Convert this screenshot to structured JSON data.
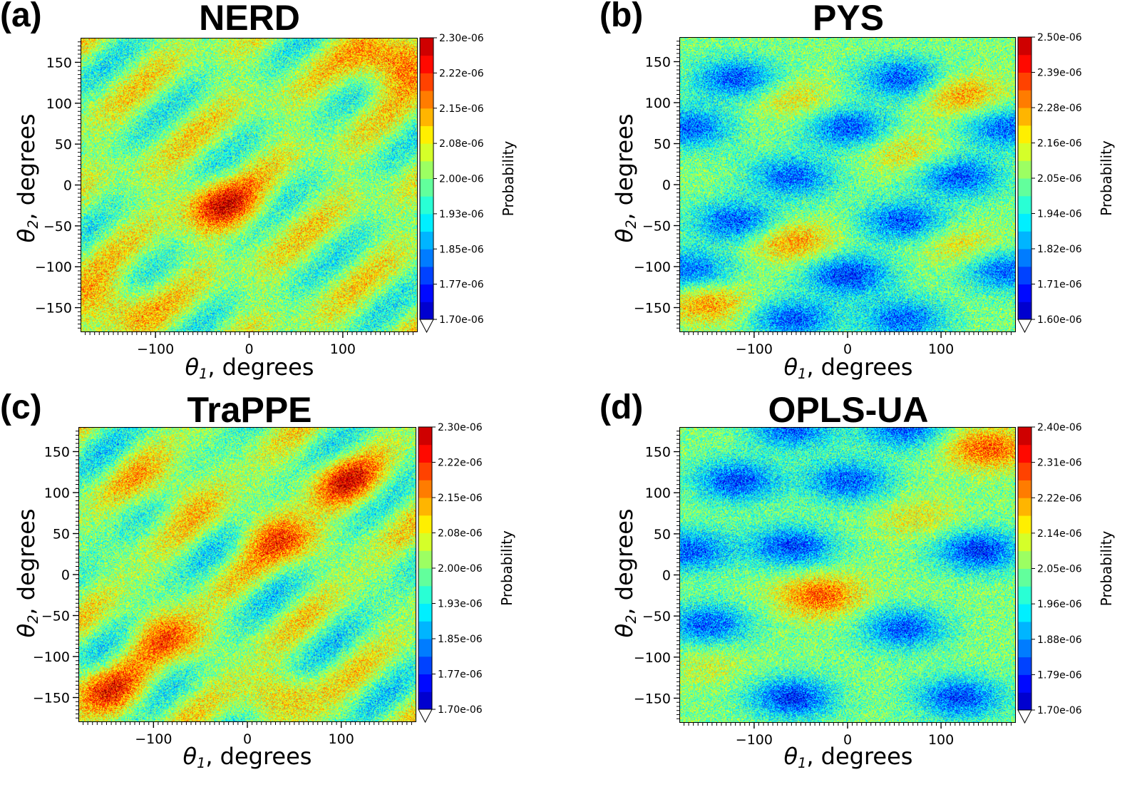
{
  "chart_data": [
    {
      "type": "heatmap",
      "panel_label": "(a)",
      "title": "NERD",
      "xlabel_symbol": "θ",
      "xlabel_sub": "1",
      "xlabel_text": ", degrees",
      "ylabel_symbol": "θ",
      "ylabel_sub": "2",
      "ylabel_text": ", degrees",
      "xlim": [
        -180,
        180
      ],
      "ylim": [
        -180,
        180
      ],
      "xticks": [
        -100,
        0,
        100
      ],
      "yticks": [
        150,
        100,
        50,
        0,
        -50,
        -100,
        -150
      ],
      "colorbar_label": "Probability",
      "colorbar_ticks": [
        "2.30e-06",
        "2.22e-06",
        "2.15e-06",
        "2.08e-06",
        "2.00e-06",
        "1.93e-06",
        "1.85e-06",
        "1.77e-06",
        "1.70e-06"
      ],
      "colorbar_range": [
        1.7e-06,
        2.3e-06
      ],
      "pattern": "diagonal",
      "hotspots": [
        {
          "x": -30,
          "y": -25,
          "v": 2.22e-06
        },
        {
          "x": 155,
          "y": 150,
          "v": 2.22e-06
        },
        {
          "x": -150,
          "y": -145,
          "v": 2.15e-06
        }
      ]
    },
    {
      "type": "heatmap",
      "panel_label": "(b)",
      "title": "PYS",
      "xlabel_symbol": "θ",
      "xlabel_sub": "1",
      "xlabel_text": ", degrees",
      "ylabel_symbol": "θ",
      "ylabel_sub": "2",
      "ylabel_text": ", degrees",
      "xlim": [
        -180,
        180
      ],
      "ylim": [
        -180,
        180
      ],
      "xticks": [
        -100,
        0,
        100
      ],
      "yticks": [
        150,
        100,
        50,
        0,
        -50,
        -100,
        -150
      ],
      "colorbar_label": "Probability",
      "colorbar_ticks": [
        "2.50e-06",
        "2.39e-06",
        "2.28e-06",
        "2.16e-06",
        "2.05e-06",
        "1.94e-06",
        "1.82e-06",
        "1.71e-06",
        "1.60e-06"
      ],
      "colorbar_range": [
        1.6e-06,
        2.5e-06
      ],
      "pattern": "blobs",
      "hotspots": [
        {
          "x": 120,
          "y": 110,
          "v": 2.3e-06
        },
        {
          "x": -60,
          "y": 105,
          "v": 2.2e-06
        },
        {
          "x": -60,
          "y": -70,
          "v": 2.3e-06
        },
        {
          "x": 120,
          "y": -75,
          "v": 2.2e-06
        },
        {
          "x": 60,
          "y": 40,
          "v": 2.2e-06
        },
        {
          "x": -150,
          "y": -145,
          "v": 2.3e-06
        },
        {
          "x": 0,
          "y": -110,
          "v": 1.68e-06
        },
        {
          "x": 0,
          "y": 70,
          "v": 1.72e-06
        },
        {
          "x": -120,
          "y": 130,
          "v": 1.72e-06
        },
        {
          "x": 60,
          "y": 130,
          "v": 1.72e-06
        },
        {
          "x": 120,
          "y": 10,
          "v": 1.72e-06
        },
        {
          "x": -60,
          "y": 10,
          "v": 1.74e-06
        },
        {
          "x": -120,
          "y": -45,
          "v": 1.72e-06
        },
        {
          "x": 60,
          "y": -45,
          "v": 1.72e-06
        },
        {
          "x": -60,
          "y": -165,
          "v": 1.72e-06
        },
        {
          "x": 60,
          "y": -165,
          "v": 1.74e-06
        },
        {
          "x": -170,
          "y": 70,
          "v": 1.74e-06
        },
        {
          "x": 170,
          "y": 70,
          "v": 1.74e-06
        },
        {
          "x": -170,
          "y": -105,
          "v": 1.74e-06
        },
        {
          "x": 170,
          "y": -105,
          "v": 1.74e-06
        }
      ]
    },
    {
      "type": "heatmap",
      "panel_label": "(c)",
      "title": "TraPPE",
      "xlabel_symbol": "θ",
      "xlabel_sub": "1",
      "xlabel_text": ", degrees",
      "ylabel_symbol": "θ",
      "ylabel_sub": "2",
      "ylabel_text": ", degrees",
      "xlim": [
        -180,
        180
      ],
      "ylim": [
        -180,
        180
      ],
      "xticks": [
        -100,
        0,
        100
      ],
      "yticks": [
        150,
        100,
        50,
        0,
        -50,
        -100,
        -150
      ],
      "colorbar_label": "Probability",
      "colorbar_ticks": [
        "2.30e-06",
        "2.22e-06",
        "2.15e-06",
        "2.08e-06",
        "2.00e-06",
        "1.93e-06",
        "1.85e-06",
        "1.77e-06",
        "1.70e-06"
      ],
      "colorbar_range": [
        1.7e-06,
        2.3e-06
      ],
      "pattern": "diagonal2",
      "hotspots": [
        {
          "x": 105,
          "y": 115,
          "v": 2.2e-06
        },
        {
          "x": 35,
          "y": 45,
          "v": 2.2e-06
        },
        {
          "x": -85,
          "y": -75,
          "v": 2.18e-06
        },
        {
          "x": -150,
          "y": -145,
          "v": 2.2e-06
        },
        {
          "x": 35,
          "y": -150,
          "v": 2.12e-06
        },
        {
          "x": -85,
          "y": 105,
          "v": 2.12e-06
        }
      ]
    },
    {
      "type": "heatmap",
      "panel_label": "(d)",
      "title": "OPLS-UA",
      "xlabel_symbol": "θ",
      "xlabel_sub": "1",
      "xlabel_text": ", degrees",
      "ylabel_symbol": "θ",
      "ylabel_sub": "2",
      "ylabel_text": ", degrees",
      "xlim": [
        -180,
        180
      ],
      "ylim": [
        -180,
        180
      ],
      "xticks": [
        -100,
        0,
        100
      ],
      "yticks": [
        150,
        100,
        50,
        0,
        -50,
        -100,
        -150
      ],
      "colorbar_label": "Probability",
      "colorbar_ticks": [
        "2.40e-06",
        "2.31e-06",
        "2.22e-06",
        "2.14e-06",
        "2.05e-06",
        "1.96e-06",
        "1.88e-06",
        "1.79e-06",
        "1.70e-06"
      ],
      "colorbar_range": [
        1.7e-06,
        2.4e-06
      ],
      "pattern": "blobs2",
      "hotspots": [
        {
          "x": 150,
          "y": 155,
          "v": 2.3e-06
        },
        {
          "x": -30,
          "y": -25,
          "v": 2.3e-06
        },
        {
          "x": 75,
          "y": 70,
          "v": 2.15e-06
        },
        {
          "x": -150,
          "y": -110,
          "v": 2.12e-06
        },
        {
          "x": -120,
          "y": 115,
          "v": 1.78e-06
        },
        {
          "x": 0,
          "y": 115,
          "v": 1.8e-06
        },
        {
          "x": -60,
          "y": 35,
          "v": 1.78e-06
        },
        {
          "x": 140,
          "y": 30,
          "v": 1.76e-06
        },
        {
          "x": -170,
          "y": 30,
          "v": 1.8e-06
        },
        {
          "x": -150,
          "y": -60,
          "v": 1.8e-06
        },
        {
          "x": 60,
          "y": -65,
          "v": 1.8e-06
        },
        {
          "x": -60,
          "y": -150,
          "v": 1.76e-06
        },
        {
          "x": 120,
          "y": -150,
          "v": 1.78e-06
        },
        {
          "x": -60,
          "y": 180,
          "v": 1.8e-06
        },
        {
          "x": 60,
          "y": 180,
          "v": 1.8e-06
        }
      ]
    }
  ]
}
